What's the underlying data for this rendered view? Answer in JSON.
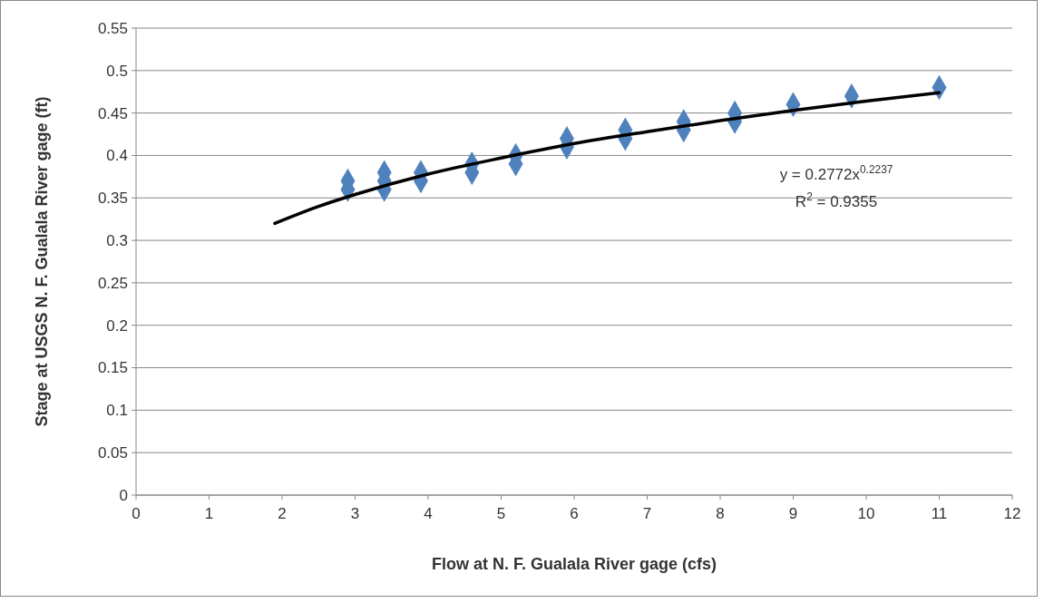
{
  "chart_data": {
    "type": "scatter",
    "xlabel": "Flow at N. F. Gualala River gage (cfs)",
    "ylabel": "Stage at USGS N. F. Gualala River gage (ft)",
    "xlim": [
      0,
      12
    ],
    "xticks": [
      0,
      1,
      2,
      3,
      4,
      5,
      6,
      7,
      8,
      9,
      10,
      11,
      12
    ],
    "ylim": [
      0,
      0.55
    ],
    "yticks": [
      0,
      0.05,
      0.1,
      0.15,
      0.2,
      0.25,
      0.3,
      0.35,
      0.4,
      0.45,
      0.5,
      0.55
    ],
    "grid": "y",
    "series": [
      {
        "color": "#4f81bd",
        "marker": "diamond",
        "x": [
          2.9,
          2.9,
          3.4,
          3.4,
          3.4,
          3.9,
          3.9,
          4.6,
          4.6,
          5.2,
          5.2,
          5.9,
          5.9,
          6.7,
          6.7,
          7.5,
          7.5,
          8.2,
          8.2,
          9.0,
          9.8,
          11
        ],
        "values": [
          0.37,
          0.36,
          0.38,
          0.37,
          0.36,
          0.38,
          0.37,
          0.39,
          0.38,
          0.4,
          0.39,
          0.42,
          0.41,
          0.43,
          0.42,
          0.44,
          0.43,
          0.45,
          0.44,
          0.46,
          0.47,
          0.48
        ]
      },
      {
        "type": "line",
        "color": "#000000",
        "marker": "none",
        "line_style": "solid",
        "x": [
          1.9,
          2.5,
          3,
          4,
          5,
          6,
          7,
          8,
          9,
          10,
          11
        ],
        "values": [
          0.32,
          0.34,
          0.354,
          0.378,
          0.397,
          0.414,
          0.428,
          0.441,
          0.453,
          0.464,
          0.474
        ]
      }
    ],
    "annotations": [
      "y = 0.2772x$^{0.2237}$",
      "R$^{2}$ = 0.9355"
    ]
  }
}
